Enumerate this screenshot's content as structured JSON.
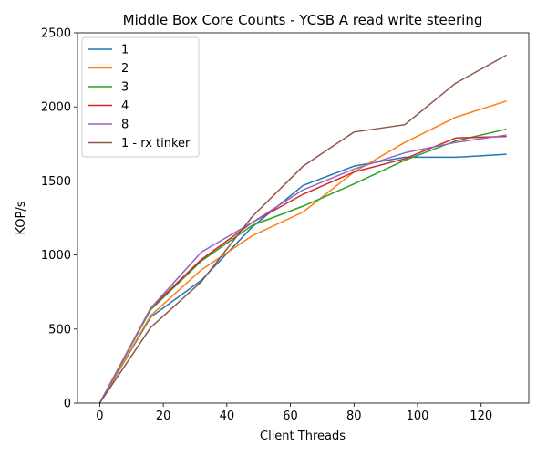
{
  "chart_data": {
    "type": "line",
    "title": "Middle Box Core Counts - YCSB A read write steering",
    "xlabel": "Client Threads",
    "ylabel": "KOP/s",
    "xlim": [
      -7,
      135
    ],
    "ylim": [
      0,
      2500
    ],
    "xticks": [
      0,
      20,
      40,
      60,
      80,
      100,
      120
    ],
    "yticks": [
      0,
      500,
      1000,
      1500,
      2000,
      2500
    ],
    "legend_position": "top-left",
    "grid": false,
    "series": [
      {
        "name": "1",
        "color": "#1f77b4",
        "x": [
          0,
          16,
          32,
          48,
          64,
          80,
          96,
          112,
          128
        ],
        "y": [
          0,
          580,
          830,
          1190,
          1470,
          1600,
          1660,
          1660,
          1680
        ]
      },
      {
        "name": "2",
        "color": "#ff7f0e",
        "x": [
          0,
          16,
          32,
          48,
          64,
          80,
          96,
          112,
          128
        ],
        "y": [
          0,
          590,
          900,
          1130,
          1290,
          1560,
          1760,
          1930,
          2040
        ]
      },
      {
        "name": "3",
        "color": "#2ca02c",
        "x": [
          0,
          16,
          32,
          48,
          64,
          80,
          96,
          112,
          128
        ],
        "y": [
          0,
          630,
          960,
          1200,
          1330,
          1480,
          1640,
          1770,
          1850
        ]
      },
      {
        "name": "4",
        "color": "#d62728",
        "x": [
          0,
          16,
          32,
          48,
          64,
          80,
          96,
          112,
          128
        ],
        "y": [
          0,
          640,
          970,
          1220,
          1410,
          1560,
          1650,
          1790,
          1800
        ]
      },
      {
        "name": "8",
        "color": "#9467bd",
        "x": [
          0,
          16,
          32,
          48,
          64,
          80,
          96,
          112,
          128
        ],
        "y": [
          0,
          640,
          1020,
          1220,
          1440,
          1580,
          1690,
          1760,
          1810
        ]
      },
      {
        "name": "1 - rx tinker",
        "color": "#8c564b",
        "x": [
          0,
          16,
          32,
          48,
          64,
          80,
          96,
          112,
          128
        ],
        "y": [
          0,
          510,
          820,
          1260,
          1600,
          1830,
          1880,
          2160,
          2350
        ]
      }
    ]
  }
}
